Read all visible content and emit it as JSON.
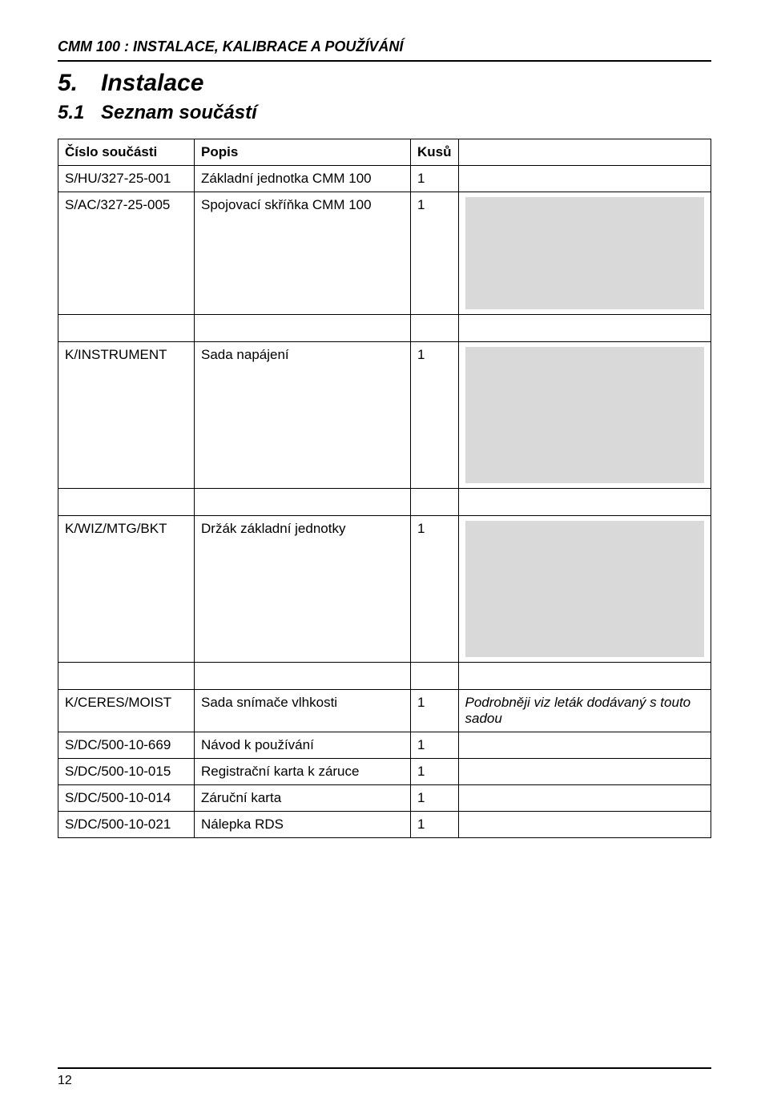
{
  "header": {
    "doc_id": "CMM 100 :",
    "doc_title": "INSTALACE, KALIBRACE  A POUŽÍVÁNÍ"
  },
  "section": {
    "num": "5.",
    "title": "Instalace"
  },
  "subsection": {
    "num": "5.1",
    "title": "Seznam součástí"
  },
  "table": {
    "headers": {
      "part": "Číslo součásti",
      "desc": "Popis",
      "qty": "Kusů",
      "extra": ""
    },
    "rows": [
      {
        "part": "S/HU/327-25-001",
        "desc": "Základní jednotka CMM 100",
        "qty": "1",
        "extra": "",
        "img": false
      },
      {
        "part": "S/AC/327-25-005",
        "desc": "Spojovací skříňka CMM 100",
        "qty": "1",
        "extra": "",
        "img": true,
        "imgClass": "img-h1"
      },
      {
        "spacer": true
      },
      {
        "part": "K/INSTRUMENT",
        "desc": "Sada napájení",
        "qty": "1",
        "extra": "",
        "img": true,
        "imgClass": "img-h2"
      },
      {
        "spacer": true
      },
      {
        "part": "K/WIZ/MTG/BKT",
        "desc": "Držák základní jednotky",
        "qty": "1",
        "extra": "",
        "img": true,
        "imgClass": "img-h3"
      },
      {
        "spacer": true
      },
      {
        "part": "K/CERES/MOIST",
        "desc": "Sada snímače vlhkosti",
        "qty": "1",
        "extra": "Podrobněji viz leták dodávaný s touto sadou",
        "extraItalic": true,
        "img": false
      },
      {
        "part": "S/DC/500-10-669",
        "desc": "Návod k používání",
        "qty": "1",
        "extra": "",
        "img": false
      },
      {
        "part": "S/DC/500-10-015",
        "desc": "Registrační karta k záruce",
        "qty": "1",
        "extra": "",
        "img": false
      },
      {
        "part": "S/DC/500-10-014",
        "desc": "Záruční karta",
        "qty": "1",
        "extra": "",
        "img": false
      },
      {
        "part": "S/DC/500-10-021",
        "desc": "Nálepka RDS",
        "qty": "1",
        "extra": "",
        "img": false
      }
    ]
  },
  "footer": {
    "page_number": "12"
  }
}
